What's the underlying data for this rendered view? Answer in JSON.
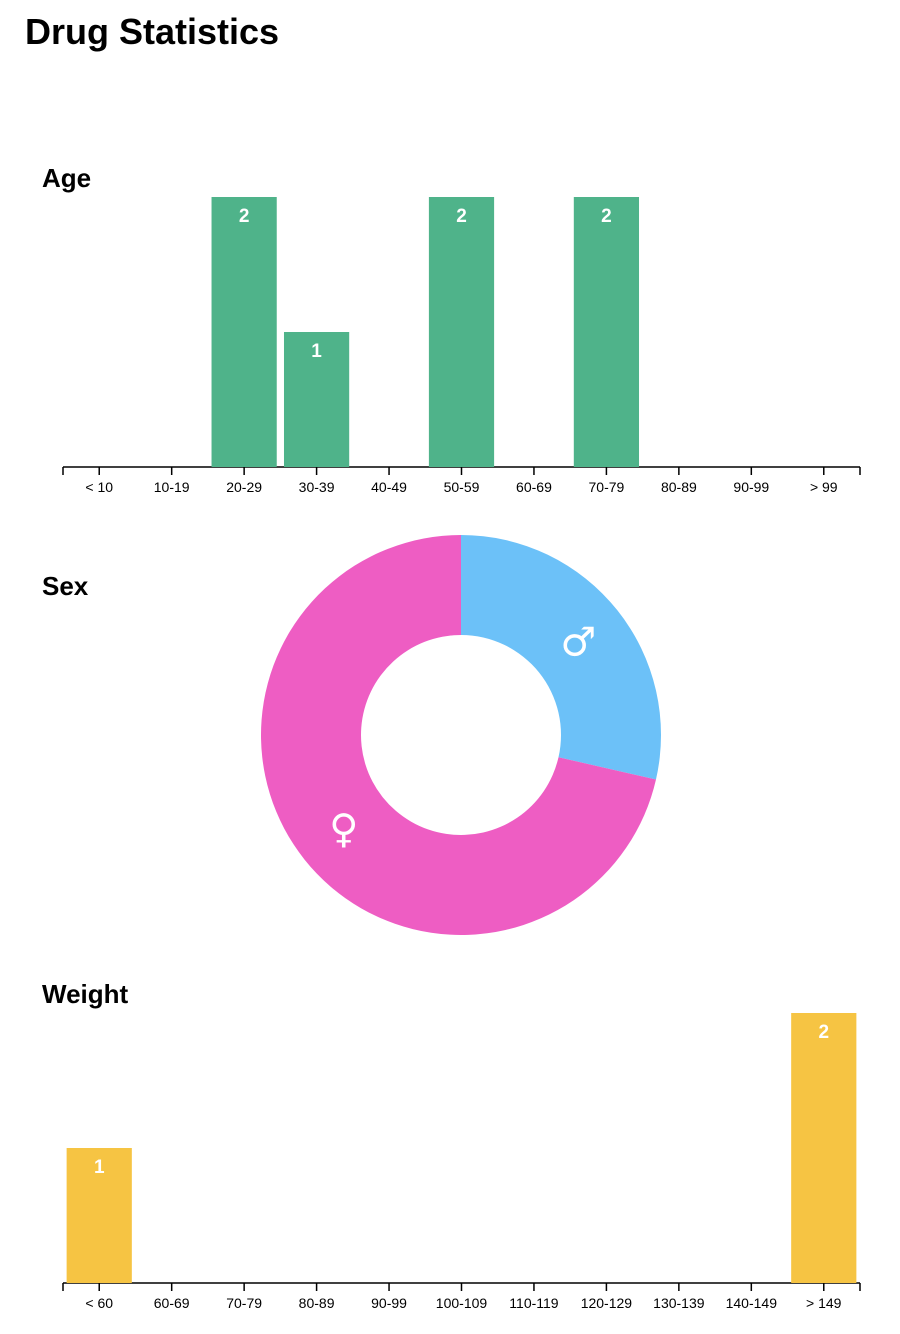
{
  "page": {
    "title": "Drug Statistics"
  },
  "sections": {
    "age": {
      "title": "Age"
    },
    "sex": {
      "title": "Sex"
    },
    "weight": {
      "title": "Weight"
    }
  },
  "chart_data": [
    {
      "id": "age",
      "type": "bar",
      "title": "Age",
      "categories": [
        "< 10",
        "10-19",
        "20-29",
        "30-39",
        "40-49",
        "50-59",
        "60-69",
        "70-79",
        "80-89",
        "90-99",
        "> 99"
      ],
      "values": [
        0,
        0,
        2,
        1,
        0,
        2,
        0,
        2,
        0,
        0,
        0
      ],
      "ylim": [
        0,
        2
      ],
      "color": "#4fb38a",
      "grid": false
    },
    {
      "id": "sex",
      "type": "pie",
      "title": "Sex",
      "donut": true,
      "slices": [
        {
          "symbol": "♂",
          "value": 2,
          "color": "#6cc1f8"
        },
        {
          "symbol": "♀",
          "value": 5,
          "color": "#ee5dc3"
        }
      ]
    },
    {
      "id": "weight",
      "type": "bar",
      "title": "Weight",
      "categories": [
        "< 60",
        "60-69",
        "70-79",
        "80-89",
        "90-99",
        "100-109",
        "110-119",
        "120-129",
        "130-139",
        "140-149",
        "> 149"
      ],
      "values": [
        1,
        0,
        0,
        0,
        0,
        0,
        0,
        0,
        0,
        0,
        2
      ],
      "ylim": [
        0,
        2
      ],
      "color": "#f6c443",
      "grid": false
    }
  ]
}
